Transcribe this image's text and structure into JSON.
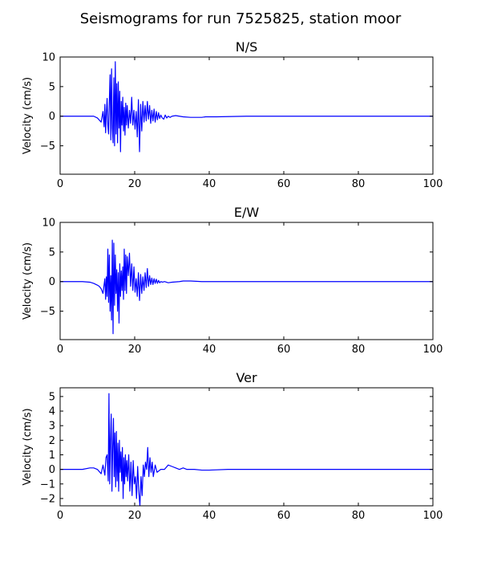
{
  "title": "Seismograms for run 7525825, station moor",
  "chart_data": [
    {
      "type": "line",
      "title": "N/S",
      "ylabel": "Velocity (cm/s)",
      "xlim": [
        0,
        100
      ],
      "ylim": [
        -9.8,
        10
      ],
      "xticks": [
        "0",
        "20",
        "40",
        "60",
        "80",
        "100"
      ],
      "yticks": [
        "10",
        "5",
        "0",
        "−5"
      ],
      "ytick_values": [
        10,
        5,
        0,
        -5
      ],
      "series": [
        {
          "color": "#0000ff",
          "x": [
            0,
            9,
            10,
            11,
            11.5,
            11.8,
            12.0,
            12.2,
            12.4,
            12.6,
            12.8,
            13.0,
            13.2,
            13.4,
            13.6,
            13.8,
            14.0,
            14.2,
            14.4,
            14.6,
            14.8,
            15.0,
            15.2,
            15.4,
            15.6,
            15.8,
            16.0,
            16.2,
            16.4,
            16.6,
            16.8,
            17.0,
            17.2,
            17.4,
            17.6,
            17.8,
            18.0,
            18.3,
            18.6,
            18.9,
            19.2,
            19.5,
            19.8,
            20.1,
            20.4,
            20.7,
            21.0,
            21.3,
            21.6,
            21.9,
            22.2,
            22.5,
            22.8,
            23.1,
            23.4,
            23.7,
            24.0,
            24.3,
            24.6,
            24.9,
            25.2,
            25.5,
            25.8,
            26.1,
            26.4,
            26.7,
            27.0,
            27.4,
            27.8,
            28.2,
            28.6,
            29.0,
            29.5,
            30,
            31,
            32,
            33,
            35,
            38,
            39,
            42,
            50,
            70,
            100
          ],
          "y": [
            0,
            0,
            -0.3,
            -1.0,
            0.8,
            -1.8,
            2.0,
            -2.8,
            0.5,
            3.0,
            -1.5,
            -3.0,
            2.5,
            7.0,
            -4.0,
            8.0,
            -2.0,
            -4.5,
            6.5,
            -5.0,
            9.2,
            -3.0,
            5.5,
            -4.5,
            5.8,
            -2.0,
            4.2,
            -6.0,
            2.5,
            -1.5,
            3.2,
            -2.5,
            1.5,
            -3.2,
            2.2,
            -1.5,
            1.8,
            -2.0,
            1.0,
            -1.2,
            3.2,
            -1.5,
            1.0,
            -2.2,
            0.8,
            -3.5,
            2.8,
            -6.0,
            2.0,
            -2.5,
            2.5,
            -1.0,
            1.8,
            -0.8,
            2.5,
            -0.5,
            1.8,
            -1.2,
            1.0,
            -0.8,
            1.2,
            -1.0,
            0.8,
            -0.6,
            0.6,
            -0.4,
            0.2,
            -0.3,
            -0.5,
            0.2,
            -0.3,
            0.0,
            -0.2,
            0.0,
            0.1,
            0.0,
            -0.1,
            -0.2,
            -0.2,
            -0.1,
            -0.1,
            0,
            0,
            0
          ]
        }
      ]
    },
    {
      "type": "line",
      "title": "E/W",
      "ylabel": "Velocity (cm/s)",
      "xlim": [
        0,
        100
      ],
      "ylim": [
        -9.8,
        10
      ],
      "xticks": [
        "0",
        "20",
        "40",
        "60",
        "80",
        "100"
      ],
      "yticks": [
        "10",
        "5",
        "0",
        "−5"
      ],
      "ytick_values": [
        10,
        5,
        0,
        -5
      ],
      "series": [
        {
          "color": "#0000ff",
          "x": [
            0,
            6,
            8,
            9,
            10,
            10.5,
            11,
            11.5,
            12.0,
            12.2,
            12.4,
            12.6,
            12.8,
            13.0,
            13.2,
            13.4,
            13.6,
            13.8,
            14.0,
            14.2,
            14.4,
            14.6,
            14.8,
            15.0,
            15.2,
            15.4,
            15.6,
            15.8,
            16.0,
            16.2,
            16.4,
            16.6,
            16.8,
            17.0,
            17.2,
            17.4,
            17.6,
            17.8,
            18.0,
            18.3,
            18.6,
            18.9,
            19.2,
            19.5,
            19.8,
            20.1,
            20.4,
            20.7,
            21.0,
            21.3,
            21.6,
            21.9,
            22.2,
            22.5,
            22.8,
            23.1,
            23.4,
            23.7,
            24.0,
            24.3,
            24.6,
            24.9,
            25.2,
            25.5,
            25.8,
            26.1,
            26.4,
            26.7,
            27.0,
            27.5,
            28,
            29,
            30,
            32,
            33,
            35,
            38,
            40,
            50,
            70,
            100
          ],
          "y": [
            0,
            0,
            -0.1,
            -0.3,
            -0.6,
            -0.8,
            -1.2,
            -2.0,
            0.5,
            -3.0,
            0.8,
            -2.5,
            5.5,
            -3.5,
            4.5,
            -5.0,
            1.0,
            -6.5,
            7.0,
            -8.8,
            6.5,
            -4.0,
            4.5,
            -2.0,
            2.0,
            -5.0,
            1.5,
            -7.0,
            3.0,
            -2.5,
            1.8,
            -1.5,
            2.5,
            -3.0,
            5.5,
            -1.5,
            4.5,
            -2.0,
            4.2,
            1.0,
            4.8,
            -0.8,
            3.0,
            -1.5,
            2.5,
            -1.8,
            0.5,
            -2.5,
            1.5,
            -3.2,
            1.2,
            -2.0,
            0.8,
            -1.5,
            1.5,
            -1.0,
            2.2,
            -0.8,
            1.0,
            -0.5,
            0.6,
            -0.5,
            0.5,
            -0.3,
            0.4,
            -0.3,
            0.2,
            -0.2,
            0.0,
            -0.1,
            0.0,
            -0.2,
            -0.1,
            0.0,
            0.1,
            0.1,
            0.0,
            0.0,
            0,
            0,
            0
          ]
        }
      ]
    },
    {
      "type": "line",
      "title": "Ver",
      "ylabel": "Velocity (cm/s)",
      "xlim": [
        0,
        100
      ],
      "ylim": [
        -2.5,
        5.6
      ],
      "xticks": [
        "0",
        "20",
        "40",
        "60",
        "80",
        "100"
      ],
      "yticks": [
        "5",
        "4",
        "3",
        "2",
        "1",
        "0",
        "−1",
        "−2"
      ],
      "ytick_values": [
        5,
        4,
        3,
        2,
        1,
        0,
        -1,
        -2
      ],
      "series": [
        {
          "color": "#0000ff",
          "x": [
            0,
            6,
            8,
            9,
            10,
            11,
            11.5,
            12.0,
            12.3,
            12.6,
            12.9,
            13.1,
            13.3,
            13.5,
            13.7,
            13.9,
            14.1,
            14.3,
            14.5,
            14.7,
            14.9,
            15.1,
            15.3,
            15.5,
            15.7,
            15.9,
            16.1,
            16.3,
            16.5,
            16.7,
            16.9,
            17.1,
            17.3,
            17.5,
            17.7,
            17.9,
            18.1,
            18.4,
            18.7,
            19.0,
            19.3,
            19.6,
            19.9,
            20.2,
            20.5,
            20.8,
            21.1,
            21.4,
            21.7,
            22.0,
            22.3,
            22.6,
            22.9,
            23.2,
            23.5,
            23.8,
            24.1,
            24.4,
            24.7,
            25.0,
            25.5,
            26,
            27,
            28,
            29,
            30,
            31,
            32,
            33,
            34,
            36,
            38,
            40,
            45,
            60,
            100
          ],
          "y": [
            0,
            0,
            0.1,
            0.1,
            0.0,
            -0.3,
            0.3,
            -0.4,
            0.8,
            1.0,
            -0.8,
            5.2,
            -1.0,
            2.0,
            3.8,
            -1.5,
            1.5,
            3.5,
            -0.5,
            2.5,
            -1.2,
            2.6,
            -0.8,
            1.8,
            -1.5,
            2.0,
            -0.2,
            1.2,
            -0.8,
            1.5,
            -2.0,
            0.8,
            -1.0,
            1.0,
            -0.5,
            0.6,
            -0.8,
            1.0,
            -1.5,
            0.5,
            -1.8,
            0.6,
            -1.0,
            -0.5,
            -2.0,
            0.2,
            -1.5,
            -2.5,
            -0.5,
            -1.8,
            0.3,
            -0.5,
            0.5,
            0.0,
            1.5,
            -0.5,
            0.8,
            -0.2,
            0.5,
            -0.5,
            0.3,
            -0.2,
            0.0,
            0.0,
            0.3,
            0.2,
            0.1,
            0.0,
            0.1,
            0.0,
            0.0,
            -0.05,
            -0.05,
            0,
            0,
            0
          ]
        }
      ]
    }
  ]
}
